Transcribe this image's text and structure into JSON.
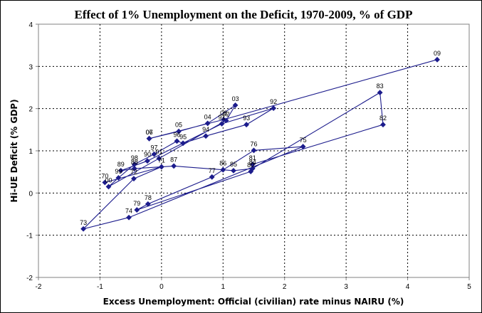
{
  "chart_data": {
    "type": "scatter",
    "title": "Effect of 1% Unemployment on the Deficit, 1970-2009, % of GDP",
    "xlabel": "Excess Unemployment: Official (civilian) rate minus NAIRU (%)",
    "ylabel": "Hi-UE Deficit (% GDP)",
    "xlim": [
      -2,
      5
    ],
    "ylim": [
      -2,
      4
    ],
    "xticks": [
      -2,
      -1,
      0,
      1,
      2,
      3,
      4,
      5
    ],
    "yticks": [
      -2,
      -1,
      0,
      1,
      2,
      3,
      4
    ],
    "grid": true,
    "legend": "none",
    "series": [
      {
        "marker": "diamond",
        "color": "#1c1c8c",
        "points": [
          {
            "label": "70",
            "x": -0.92,
            "y": 0.25
          },
          {
            "label": "71",
            "x": 0.0,
            "y": 0.62
          },
          {
            "label": "72",
            "x": -0.45,
            "y": 0.34
          },
          {
            "label": "73",
            "x": -1.27,
            "y": -0.85
          },
          {
            "label": "74",
            "x": -0.53,
            "y": -0.58
          },
          {
            "label": "75",
            "x": 2.3,
            "y": 1.1
          },
          {
            "label": "76",
            "x": 1.5,
            "y": 1.01
          },
          {
            "label": "77",
            "x": 0.82,
            "y": 0.38
          },
          {
            "label": "78",
            "x": -0.22,
            "y": -0.26
          },
          {
            "label": "79",
            "x": -0.4,
            "y": -0.4
          },
          {
            "label": "80",
            "x": 1.45,
            "y": 0.51
          },
          {
            "label": "81",
            "x": 1.48,
            "y": 0.68
          },
          {
            "label": "82",
            "x": 3.6,
            "y": 1.62
          },
          {
            "label": "83",
            "x": 3.55,
            "y": 2.38
          },
          {
            "label": "84",
            "x": 1.48,
            "y": 0.58
          },
          {
            "label": "85",
            "x": 1.17,
            "y": 0.53
          },
          {
            "label": "86",
            "x": 1.0,
            "y": 0.55
          },
          {
            "label": "87",
            "x": 0.2,
            "y": 0.64
          },
          {
            "label": "88",
            "x": -0.44,
            "y": 0.58
          },
          {
            "label": "89",
            "x": -0.66,
            "y": 0.53
          },
          {
            "label": "90",
            "x": -0.23,
            "y": 0.76
          },
          {
            "label": "91",
            "x": 0.98,
            "y": 1.64
          },
          {
            "label": "92",
            "x": 1.82,
            "y": 2.01
          },
          {
            "label": "93",
            "x": 1.38,
            "y": 1.62
          },
          {
            "label": "94",
            "x": 0.72,
            "y": 1.35
          },
          {
            "label": "95",
            "x": 0.35,
            "y": 1.18
          },
          {
            "label": "96",
            "x": 0.25,
            "y": 1.23
          },
          {
            "label": "97",
            "x": -0.12,
            "y": 0.92
          },
          {
            "label": "98",
            "x": -0.44,
            "y": 0.68
          },
          {
            "label": "99",
            "x": -0.7,
            "y": 0.36
          },
          {
            "label": "00",
            "x": -0.86,
            "y": 0.15
          },
          {
            "label": "01",
            "x": -0.04,
            "y": 0.82
          },
          {
            "label": "02",
            "x": 1.05,
            "y": 1.72
          },
          {
            "label": "03",
            "x": 1.2,
            "y": 2.08
          },
          {
            "label": "04",
            "x": 0.75,
            "y": 1.65
          },
          {
            "label": "05",
            "x": 0.28,
            "y": 1.46
          },
          {
            "label": "06",
            "x": -0.2,
            "y": 1.29
          },
          {
            "label": "07",
            "x": -0.2,
            "y": 1.29
          },
          {
            "label": "08",
            "x": 1.01,
            "y": 1.74
          },
          {
            "label": "09",
            "x": 4.48,
            "y": 3.16
          }
        ]
      }
    ]
  }
}
